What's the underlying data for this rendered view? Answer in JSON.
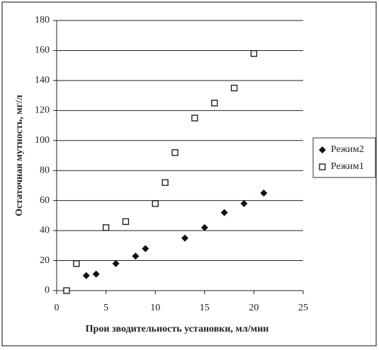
{
  "chart_data": {
    "type": "scatter",
    "x_label": "Прои зводительность установки, мл/мин",
    "y_label": "Остаточная мутность, мг/л",
    "xlim": [
      0,
      25
    ],
    "xticks": [
      0,
      5,
      10,
      15,
      20,
      25
    ],
    "ylim": [
      0,
      180
    ],
    "yticks": [
      0,
      20,
      40,
      60,
      80,
      100,
      120,
      140,
      160,
      180
    ],
    "grid": true,
    "legend": "right",
    "series": [
      {
        "name": "Режим2",
        "marker": "diamond",
        "color": "#111111",
        "x": [
          3,
          4,
          6,
          8,
          9,
          13,
          15,
          17,
          19,
          21
        ],
        "y": [
          10,
          11,
          18,
          23,
          28,
          35,
          42,
          52,
          58,
          65
        ]
      },
      {
        "name": "Режим1",
        "marker": "square",
        "color": "#111111",
        "x": [
          1,
          2,
          5,
          7,
          10,
          11,
          12,
          14,
          16,
          18,
          20
        ],
        "y": [
          0,
          18,
          42,
          46,
          58,
          72,
          92,
          115,
          125,
          135,
          158
        ]
      }
    ]
  }
}
